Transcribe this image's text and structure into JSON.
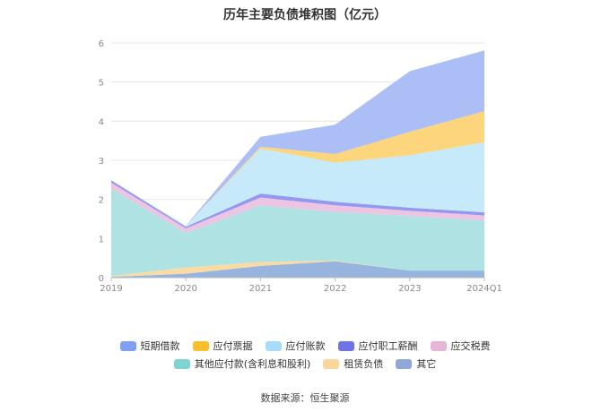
{
  "title": "历年主要负债堆积图（亿元）",
  "source_text": "数据来源：恒生聚源",
  "chart_data": {
    "type": "area",
    "stacked": true,
    "categories": [
      "2019",
      "2020",
      "2021",
      "2022",
      "2023",
      "2024Q1"
    ],
    "ylim": [
      0,
      6
    ],
    "yticks": [
      0,
      1,
      2,
      3,
      4,
      5,
      6
    ],
    "grid": true,
    "legend_position": "bottom",
    "series": [
      {
        "name": "其它",
        "color": "#8eaedb",
        "values": [
          0.02,
          0.1,
          0.3,
          0.42,
          0.18,
          0.18
        ]
      },
      {
        "name": "租赁负债",
        "color": "#f9d89b",
        "values": [
          0.02,
          0.16,
          0.1,
          0.02,
          0.0,
          0.0
        ]
      },
      {
        "name": "其他应付款(含利息和股利)",
        "color": "#a8e0e0",
        "values": [
          2.24,
          0.88,
          1.45,
          1.24,
          1.4,
          1.28
        ]
      },
      {
        "name": "应交税费",
        "color": "#ebbfdf",
        "values": [
          0.15,
          0.12,
          0.2,
          0.17,
          0.13,
          0.13
        ]
      },
      {
        "name": "应付职工薪酬",
        "color": "#8c8ff0",
        "values": [
          0.06,
          0.04,
          0.1,
          0.09,
          0.08,
          0.08
        ]
      },
      {
        "name": "应付账款",
        "color": "#c2e8fb",
        "values": [
          0.0,
          0.03,
          1.15,
          1.0,
          1.34,
          1.79
        ]
      },
      {
        "name": "应付票据",
        "color": "#fcd172",
        "values": [
          0.0,
          0.0,
          0.05,
          0.22,
          0.6,
          0.8
        ]
      },
      {
        "name": "短期借款",
        "color": "#a4b9f5",
        "values": [
          0.0,
          0.0,
          0.25,
          0.75,
          1.55,
          1.55
        ]
      }
    ],
    "legend_rows": [
      [
        {
          "name": "短期借款",
          "color": "#7e9ff2"
        },
        {
          "name": "应付票据",
          "color": "#fbbd2c"
        },
        {
          "name": "应付账款",
          "color": "#a6dcf9"
        },
        {
          "name": "应付职工薪酬",
          "color": "#6f73ea"
        },
        {
          "name": "应交税费",
          "color": "#e8b4da"
        }
      ],
      [
        {
          "name": "其他应付款(含利息和股利)",
          "color": "#7fd3d3"
        },
        {
          "name": "租赁负债",
          "color": "#fbd69a"
        },
        {
          "name": "其它",
          "color": "#8ea9d9"
        }
      ]
    ]
  }
}
